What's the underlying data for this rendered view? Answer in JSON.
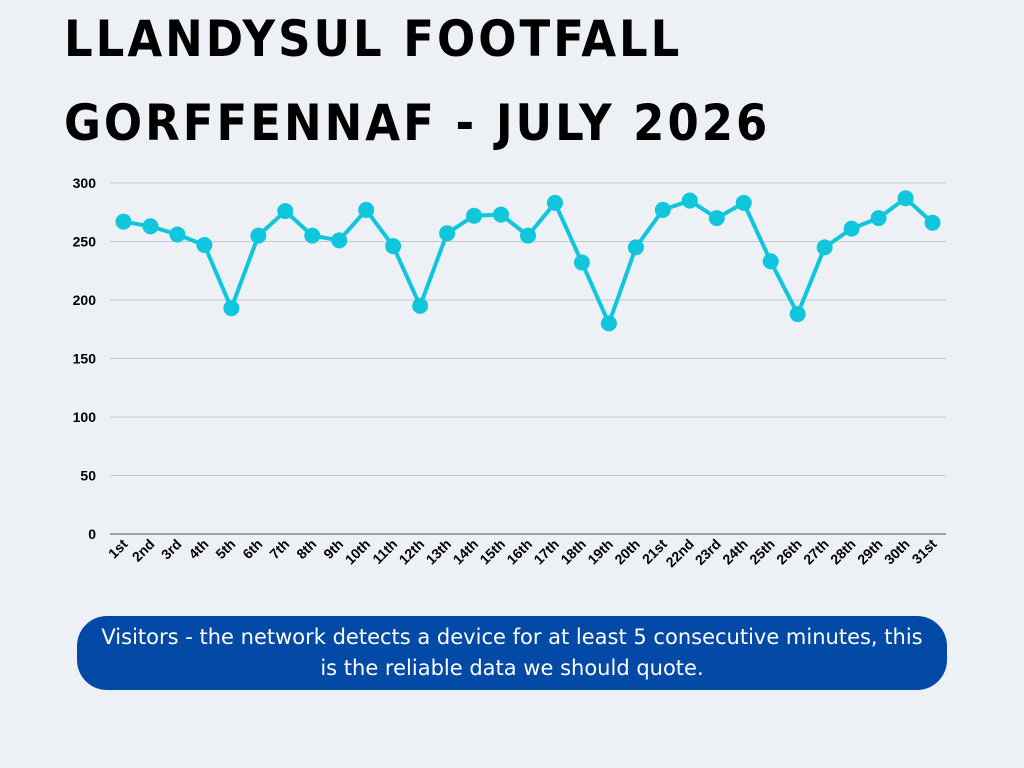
{
  "header": {
    "title_line1": "LLANDYSUL FOOTFALL",
    "title_line2": "GORFFENNAF - JULY 2026"
  },
  "chart_data": {
    "type": "line",
    "title": "",
    "xlabel": "",
    "ylabel": "",
    "ylim": [
      0,
      300
    ],
    "yticks": [
      0,
      50,
      100,
      150,
      200,
      250,
      300
    ],
    "grid": true,
    "categories": [
      "1st",
      "2nd",
      "3rd",
      "4th",
      "5th",
      "6th",
      "7th",
      "8th",
      "9th",
      "10th",
      "11th",
      "12th",
      "13th",
      "14th",
      "15th",
      "16th",
      "17th",
      "18th",
      "19th",
      "20th",
      "21st",
      "22nd",
      "23rd",
      "24th",
      "25th",
      "26th",
      "27th",
      "28th",
      "29th",
      "30th",
      "31st"
    ],
    "series": [
      {
        "values": [
          267,
          263,
          256,
          247,
          193,
          255,
          276,
          255,
          251,
          277,
          246,
          195,
          257,
          272,
          273,
          255,
          283,
          232,
          180,
          245,
          277,
          285,
          270,
          283,
          233,
          188,
          245,
          261,
          270,
          287,
          266
        ],
        "color": "#0fc6dd"
      }
    ]
  },
  "note": {
    "text": "Visitors - the network detects a device for at least 5 consecutive minutes, this is the reliable data we should quote."
  }
}
